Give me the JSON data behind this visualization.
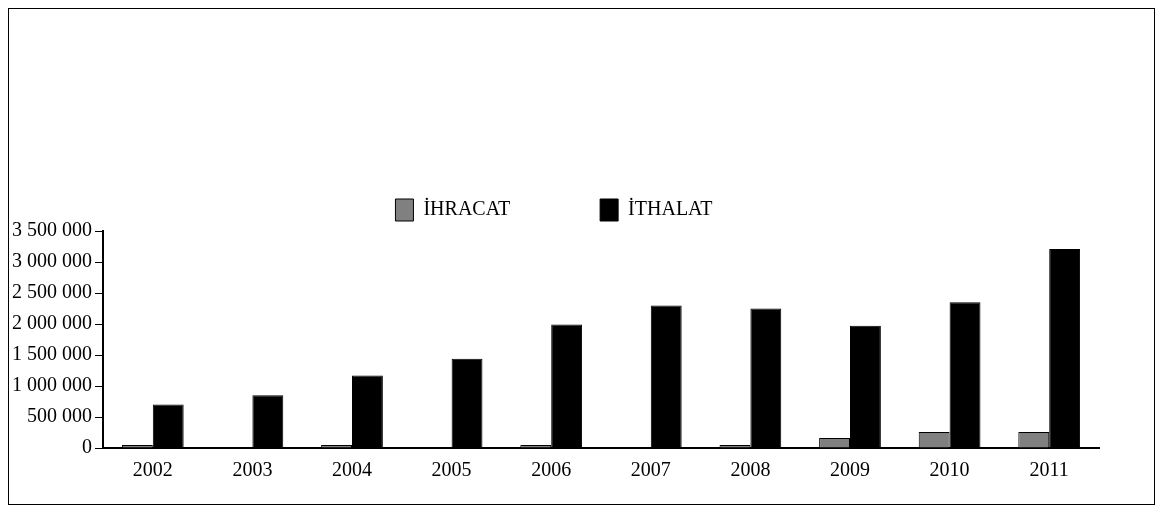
{
  "chart_data": {
    "type": "bar",
    "categories": [
      "2002",
      "2003",
      "2004",
      "2005",
      "2006",
      "2007",
      "2008",
      "2009",
      "2010",
      "2011"
    ],
    "series": [
      {
        "name": "İHRACAT",
        "color": "#808080",
        "values": [
          50000,
          0,
          50000,
          0,
          50000,
          0,
          50000,
          160000,
          260000,
          260000
        ]
      },
      {
        "name": "İTHALAT",
        "color": "#000000",
        "values": [
          700000,
          850000,
          1170000,
          1440000,
          1990000,
          2300000,
          2250000,
          1970000,
          2350000,
          3210000
        ]
      }
    ],
    "ylim": [
      0,
      3500000
    ],
    "yticks": [
      0,
      {
        "value": 500000,
        "label": "500 000"
      },
      {
        "value": 1000000,
        "label": "1 000 000"
      },
      {
        "value": 1500000,
        "label": "1 500 000"
      },
      {
        "value": 2000000,
        "label": "2 000 000"
      },
      {
        "value": 2500000,
        "label": "2 500 000"
      },
      {
        "value": 3000000,
        "label": "3 000 000"
      },
      {
        "value": 3500000,
        "label": "3 500 000"
      }
    ],
    "grid": false,
    "legend": "top"
  }
}
